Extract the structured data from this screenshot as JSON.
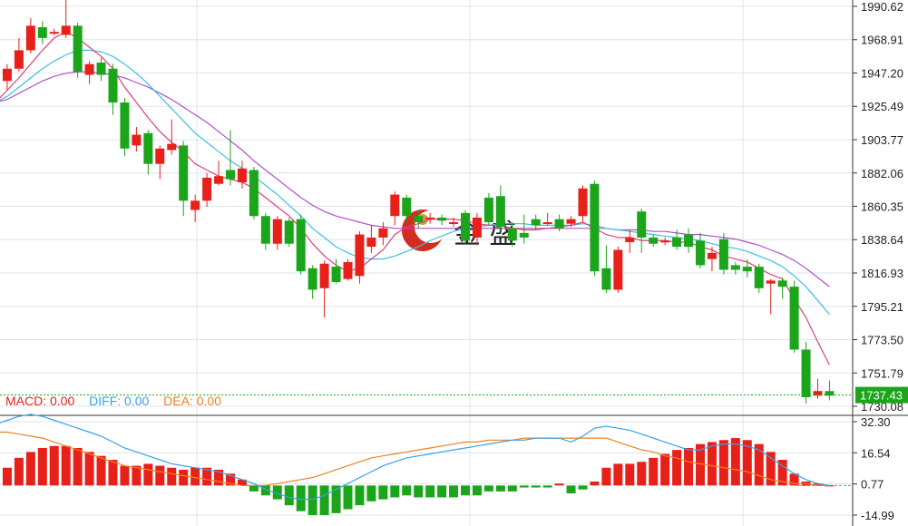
{
  "price_axis_labels": [
    "1990.62",
    "1968.91",
    "1947.20",
    "1925.49",
    "1903.77",
    "1882.06",
    "1860.35",
    "1838.64",
    "1816.93",
    "1795.21",
    "1773.50",
    "1751.79",
    "1730.08"
  ],
  "macd_axis_labels": [
    "32.30",
    "16.54",
    "0.77",
    "-14.99"
  ],
  "current_price_label": "1737.43",
  "watermark_text": "金 盛",
  "legend": {
    "macd": "MACD: 0.00",
    "diff": "DIFF: 0.00",
    "dea": "DEA: 0.00"
  },
  "colors": {
    "up": "#e8201a",
    "down": "#1aa51a",
    "ma_short": "#e0407a",
    "ma_mid": "#3cc0e0",
    "ma_long": "#b050c8",
    "diff": "#3aa0e8",
    "dea": "#f08020",
    "grid": "#dde4ee",
    "price_tag": "#1aa51a"
  },
  "chart_data": [
    {
      "type": "candlestick",
      "ylim": [
        1730.08,
        1990.62
      ],
      "yticks": [
        1990.62,
        1968.91,
        1947.2,
        1925.49,
        1903.77,
        1882.06,
        1860.35,
        1838.64,
        1816.93,
        1795.21,
        1773.5,
        1751.79,
        1730.08
      ],
      "candles": [
        [
          1928,
          1942,
          1925,
          1946
        ],
        [
          1942,
          1950,
          1936,
          1953
        ],
        [
          1950,
          1962,
          1948,
          1970
        ],
        [
          1962,
          1978,
          1960,
          1983
        ],
        [
          1977,
          1970,
          1966,
          1981
        ],
        [
          1974,
          1974,
          1972,
          1976
        ],
        [
          1972,
          1978,
          1970,
          1995
        ],
        [
          1978,
          1948,
          1944,
          1980
        ],
        [
          1946,
          1953,
          1940,
          1955
        ],
        [
          1954,
          1946,
          1942,
          1957
        ],
        [
          1950,
          1928,
          1920,
          1953
        ],
        [
          1928,
          1898,
          1893,
          1931
        ],
        [
          1900,
          1907,
          1896,
          1912
        ],
        [
          1908,
          1888,
          1881,
          1910
        ],
        [
          1888,
          1898,
          1878,
          1900
        ],
        [
          1897,
          1901,
          1894,
          1917
        ],
        [
          1900,
          1864,
          1854,
          1903
        ],
        [
          1858,
          1864,
          1850,
          1868
        ],
        [
          1864,
          1879,
          1860,
          1882
        ],
        [
          1875,
          1880,
          1874,
          1890
        ],
        [
          1884,
          1878,
          1874,
          1910
        ],
        [
          1876,
          1885,
          1872,
          1890
        ],
        [
          1884,
          1854,
          1852,
          1886
        ],
        [
          1854,
          1836,
          1832,
          1856
        ],
        [
          1836,
          1852,
          1832,
          1854
        ],
        [
          1851,
          1836,
          1834,
          1853
        ],
        [
          1852,
          1818,
          1816,
          1855
        ],
        [
          1820,
          1806,
          1800,
          1822
        ],
        [
          1807,
          1823,
          1788,
          1825
        ],
        [
          1821,
          1811,
          1810,
          1826
        ],
        [
          1813,
          1824,
          1812,
          1826
        ],
        [
          1815,
          1842,
          1810,
          1844
        ],
        [
          1834,
          1840,
          1830,
          1848
        ],
        [
          1840,
          1846,
          1835,
          1850
        ],
        [
          1854,
          1868,
          1848,
          1870
        ],
        [
          1866,
          1854,
          1850,
          1868
        ],
        [
          1854,
          1850,
          1846,
          1858
        ],
        [
          1852,
          1853,
          1849,
          1856
        ],
        [
          1853,
          1851,
          1848,
          1855
        ],
        [
          1850,
          1850,
          1847,
          1853
        ],
        [
          1856,
          1838,
          1836,
          1858
        ],
        [
          1840,
          1853,
          1835,
          1856
        ],
        [
          1866,
          1850,
          1848,
          1869
        ],
        [
          1867,
          1847,
          1843,
          1874
        ],
        [
          1846,
          1838,
          1834,
          1850
        ],
        [
          1843,
          1840,
          1836,
          1855
        ],
        [
          1852,
          1848,
          1845,
          1855
        ],
        [
          1850,
          1850,
          1848,
          1856
        ],
        [
          1852,
          1846,
          1844,
          1855
        ],
        [
          1849,
          1852,
          1847,
          1854
        ],
        [
          1854,
          1872,
          1850,
          1874
        ],
        [
          1875,
          1818,
          1815,
          1877
        ],
        [
          1820,
          1806,
          1804,
          1835
        ],
        [
          1806,
          1832,
          1804,
          1834
        ],
        [
          1837,
          1840,
          1830,
          1845
        ],
        [
          1857,
          1840,
          1830,
          1859
        ],
        [
          1840,
          1836,
          1834,
          1842
        ],
        [
          1838,
          1838,
          1835,
          1840
        ],
        [
          1840,
          1834,
          1832,
          1845
        ],
        [
          1842,
          1834,
          1830,
          1846
        ],
        [
          1838,
          1822,
          1820,
          1843
        ],
        [
          1826,
          1830,
          1818,
          1834
        ],
        [
          1839,
          1819,
          1816,
          1843
        ],
        [
          1822,
          1819,
          1816,
          1824
        ],
        [
          1821,
          1818,
          1814,
          1826
        ],
        [
          1821,
          1807,
          1804,
          1823
        ],
        [
          1810,
          1812,
          1790,
          1813
        ],
        [
          1812,
          1808,
          1800,
          1814
        ],
        [
          1808,
          1767,
          1765,
          1812
        ],
        [
          1767,
          1736,
          1732,
          1772
        ],
        [
          1737,
          1740,
          1735,
          1748
        ],
        [
          1740,
          1737,
          1734,
          1747
        ]
      ],
      "ma_short": [
        1928,
        1936,
        1944,
        1953,
        1962,
        1970,
        1974,
        1970,
        1964,
        1958,
        1950,
        1938,
        1928,
        1918,
        1909,
        1902,
        1896,
        1888,
        1884,
        1880,
        1878,
        1876,
        1872,
        1866,
        1860,
        1854,
        1846,
        1836,
        1828,
        1822,
        1818,
        1820,
        1826,
        1832,
        1842,
        1847,
        1849,
        1852,
        1852,
        1852,
        1851,
        1849,
        1848,
        1848,
        1846,
        1845,
        1845,
        1846,
        1847,
        1848,
        1850,
        1846,
        1842,
        1840,
        1840,
        1838,
        1838,
        1838,
        1837,
        1837,
        1834,
        1832,
        1828,
        1826,
        1824,
        1820,
        1816,
        1813,
        1800,
        1788,
        1772,
        1757
      ],
      "ma_mid": [
        1928,
        1932,
        1938,
        1944,
        1950,
        1955,
        1959,
        1962,
        1962,
        1961,
        1958,
        1953,
        1947,
        1940,
        1932,
        1924,
        1916,
        1908,
        1902,
        1896,
        1890,
        1885,
        1880,
        1874,
        1868,
        1861,
        1854,
        1846,
        1840,
        1834,
        1830,
        1827,
        1826,
        1826,
        1828,
        1831,
        1834,
        1838,
        1841,
        1844,
        1846,
        1847,
        1848,
        1849,
        1849,
        1849,
        1848,
        1848,
        1848,
        1848,
        1849,
        1848,
        1846,
        1845,
        1844,
        1843,
        1842,
        1841,
        1840,
        1839,
        1838,
        1836,
        1834,
        1833,
        1831,
        1828,
        1825,
        1821,
        1815,
        1808,
        1799,
        1790
      ],
      "ma_long": [
        1928,
        1930,
        1934,
        1938,
        1942,
        1945,
        1947,
        1948,
        1948,
        1947,
        1946,
        1944,
        1941,
        1938,
        1934,
        1930,
        1925,
        1920,
        1915,
        1909,
        1903,
        1897,
        1890,
        1884,
        1878,
        1872,
        1866,
        1861,
        1857,
        1854,
        1852,
        1850,
        1848,
        1847,
        1846,
        1846,
        1846,
        1846,
        1846,
        1846,
        1846,
        1846,
        1846,
        1846,
        1846,
        1846,
        1846,
        1846,
        1846,
        1846,
        1846,
        1846,
        1846,
        1845,
        1845,
        1845,
        1844,
        1844,
        1843,
        1842,
        1842,
        1841,
        1840,
        1839,
        1837,
        1835,
        1832,
        1829,
        1825,
        1820,
        1814,
        1808
      ]
    },
    {
      "type": "macd",
      "ylim": [
        -14.99,
        32.3
      ],
      "yticks": [
        32.3,
        16.54,
        0.77,
        -14.99
      ],
      "hist": [
        6,
        9,
        14,
        17,
        19,
        20,
        20,
        19,
        17,
        15,
        13,
        10,
        10,
        11,
        10,
        9,
        8,
        9,
        9,
        8,
        6,
        3,
        -3,
        -5,
        -7,
        -10,
        -13,
        -15,
        -15,
        -14,
        -12,
        -10,
        -8,
        -7,
        -6,
        -5,
        -6,
        -6,
        -6,
        -6,
        -5,
        -5,
        -3,
        -3,
        -3,
        -1,
        -1,
        -1,
        1,
        -4,
        -2,
        2,
        9,
        11,
        11,
        12,
        14,
        16,
        18,
        19,
        21,
        22,
        23,
        24,
        23,
        21,
        17,
        13,
        6,
        2,
        1,
        0
      ],
      "diff": [
        31,
        33,
        35,
        36,
        35,
        33,
        31,
        29,
        27,
        25,
        22,
        19,
        17,
        15,
        13,
        11,
        10,
        9,
        8,
        7,
        5,
        3,
        1,
        -2,
        -4,
        -6,
        -7,
        -7,
        -5,
        -2,
        1,
        4,
        7,
        10,
        12,
        14,
        15,
        16,
        17,
        18,
        19,
        20,
        21,
        22,
        23,
        23,
        24,
        24,
        24,
        22,
        25,
        29,
        30,
        29,
        28,
        26,
        24,
        22,
        20,
        18,
        18,
        20,
        21,
        21,
        20,
        18,
        14,
        10,
        6,
        3,
        1,
        0
      ],
      "dea": [
        27,
        27,
        26,
        25,
        24,
        22,
        20,
        18,
        16,
        14,
        12,
        10,
        9,
        8,
        7,
        6,
        5,
        4,
        3,
        2,
        1,
        0,
        0,
        0,
        1,
        2,
        3,
        4,
        6,
        8,
        10,
        12,
        14,
        15,
        16,
        17,
        18,
        19,
        20,
        21,
        22,
        22,
        23,
        23,
        23,
        24,
        24,
        24,
        24,
        24,
        24,
        24,
        24,
        22,
        20,
        18,
        17,
        15,
        14,
        12,
        11,
        10,
        9,
        8,
        7,
        5,
        3,
        2,
        1,
        1,
        0,
        0
      ]
    }
  ]
}
